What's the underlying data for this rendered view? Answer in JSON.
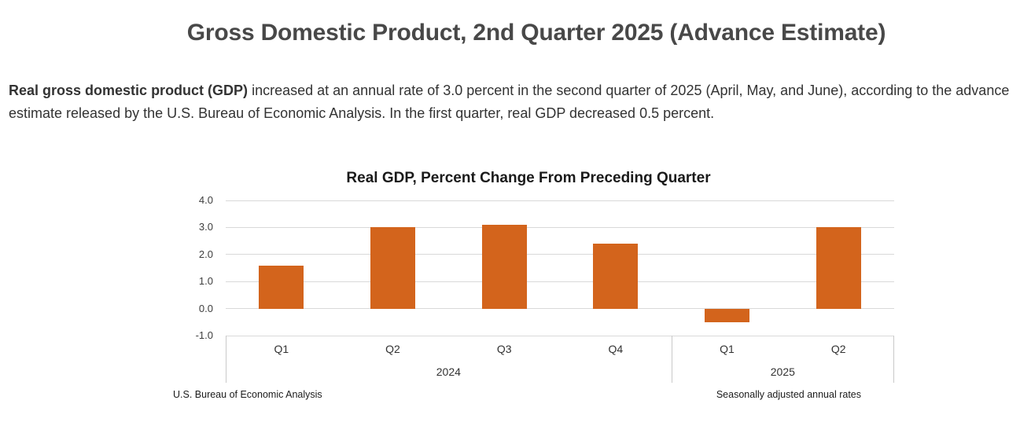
{
  "page": {
    "title": "Gross Domestic Product, 2nd Quarter 2025 (Advance Estimate)",
    "intro_bold": "Real gross domestic product (GDP)",
    "intro_rest": " increased at an annual rate of 3.0 percent in the second quarter of 2025 (April, May, and June), according to the advance estimate released by the U.S. Bureau of Economic Analysis. In the first quarter, real GDP decreased 0.5 percent."
  },
  "chart_data": {
    "type": "bar",
    "title": "Real GDP, Percent Change From Preceding Quarter",
    "categories": [
      "Q1",
      "Q2",
      "Q3",
      "Q4",
      "Q1",
      "Q2"
    ],
    "year_groups": [
      {
        "label": "2024",
        "span": 4
      },
      {
        "label": "2025",
        "span": 2
      }
    ],
    "values": [
      1.6,
      3.0,
      3.1,
      2.4,
      -0.5,
      3.0
    ],
    "ylim": [
      -1.0,
      4.0
    ],
    "yticks": [
      4.0,
      3.0,
      2.0,
      1.0,
      0.0,
      -1.0
    ],
    "ytick_labels": [
      "4.0",
      "3.0",
      "2.0",
      "1.0",
      "0.0",
      "-1.0"
    ],
    "grid": true,
    "legend": false,
    "bar_color": "#D3641C",
    "gridline_color": "#D9D9D9",
    "axis_box_color": "#C9C9C9",
    "source": "U.S. Bureau of Economic Analysis",
    "note": "Seasonally adjusted annual rates"
  }
}
